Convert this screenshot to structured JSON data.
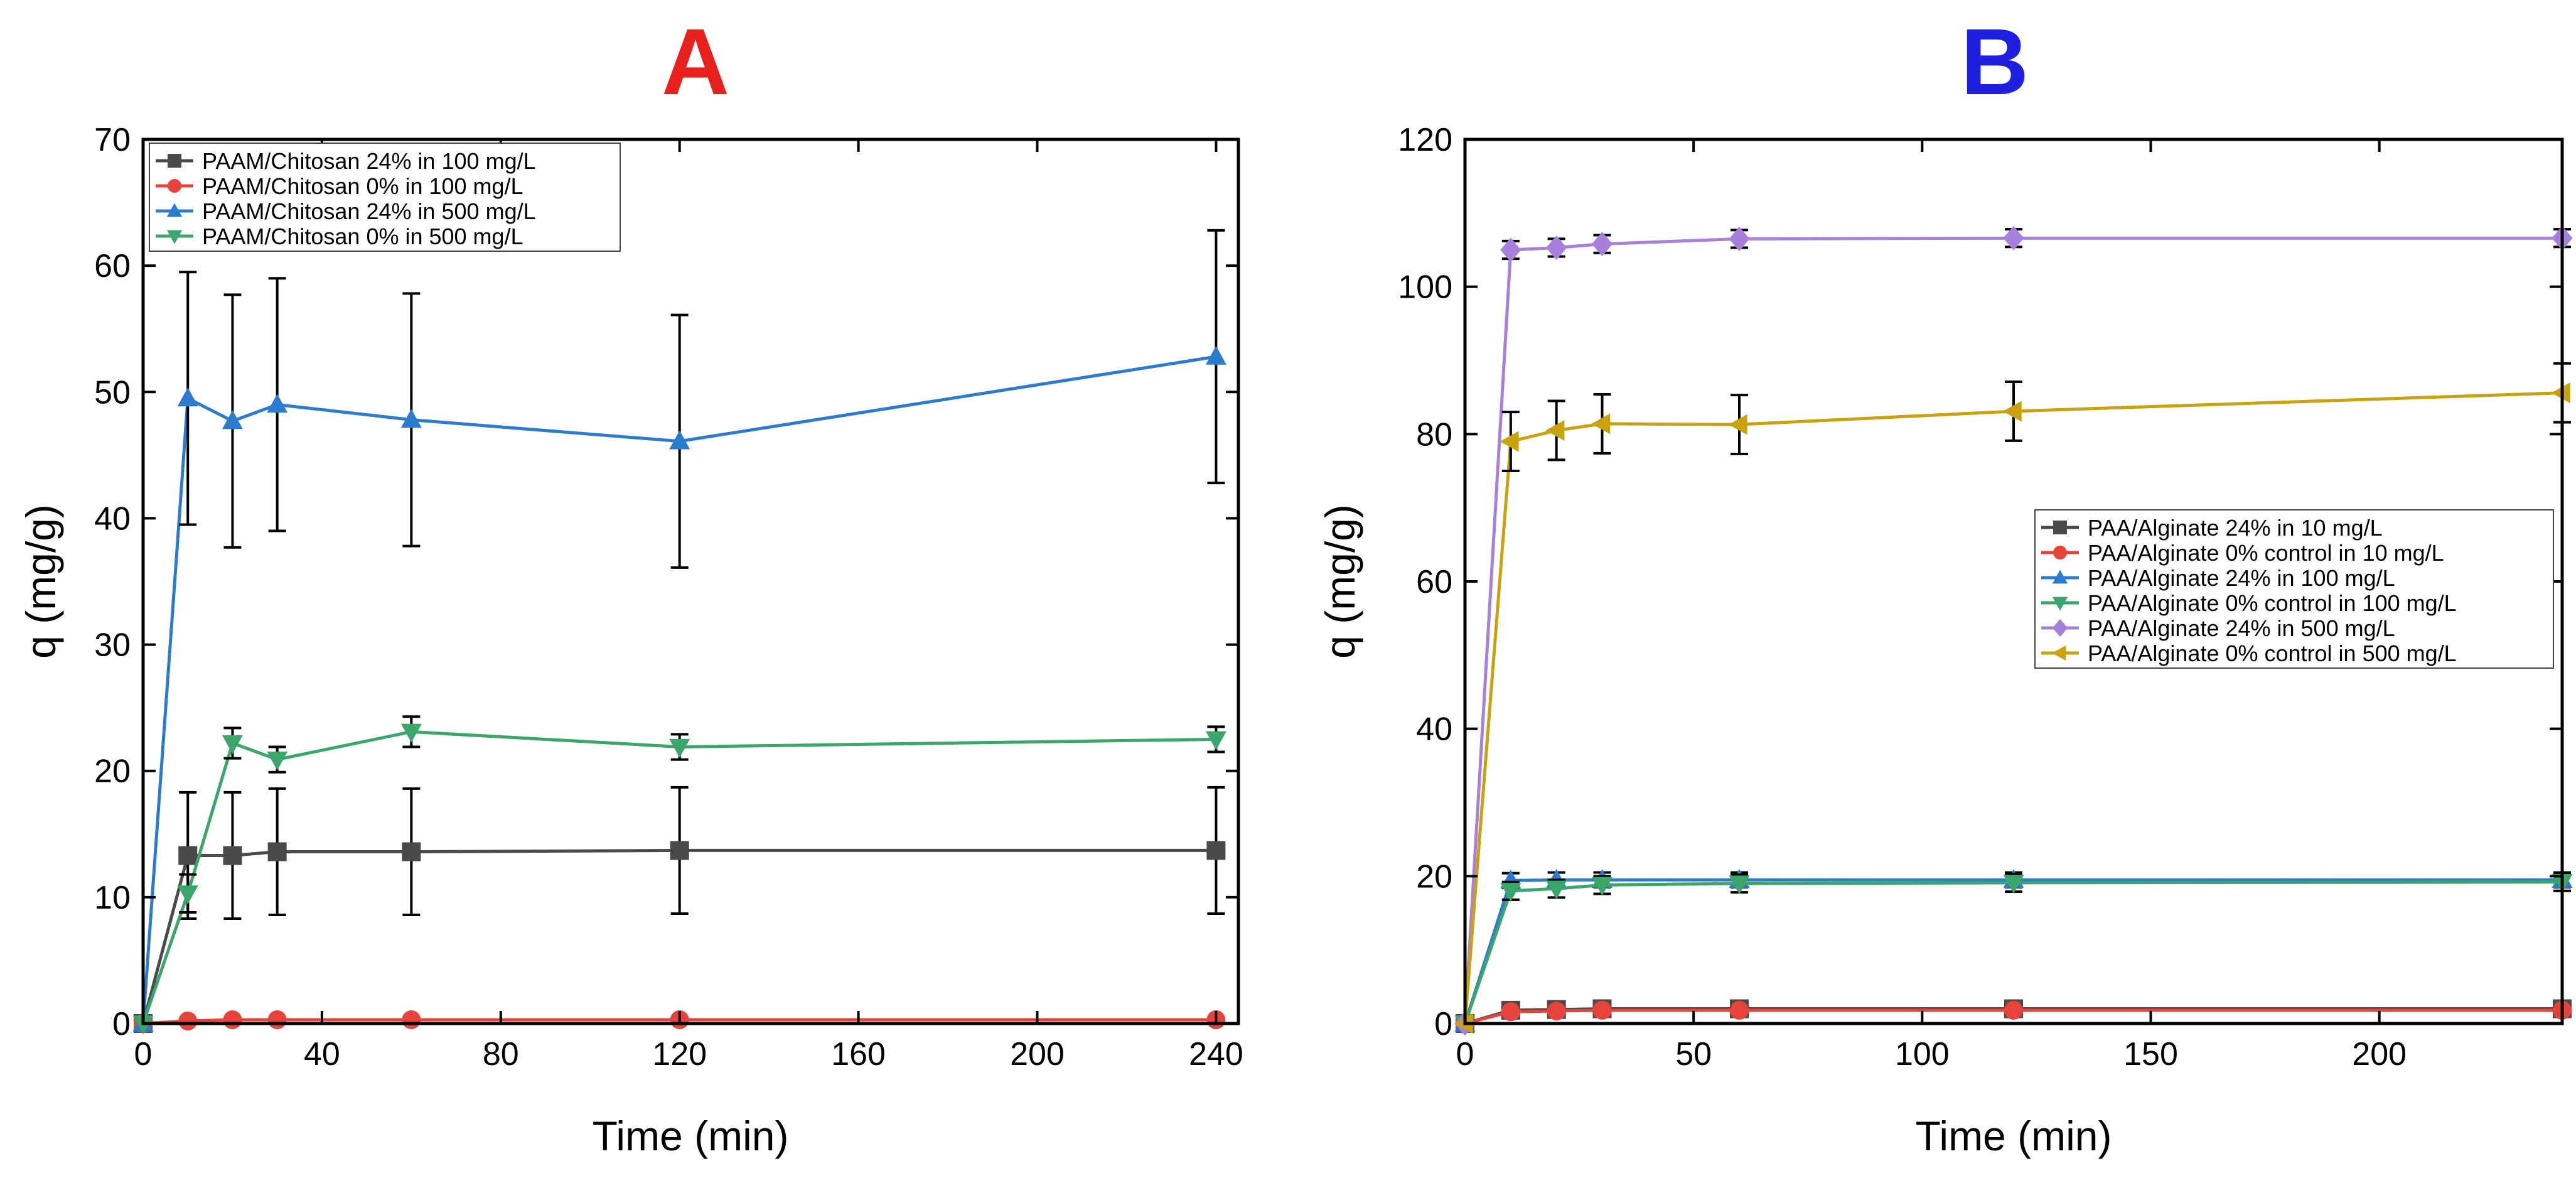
{
  "chart_data": [
    {
      "type": "line",
      "panel_label": "A",
      "panel_label_color": "#e8211c",
      "xlabel": "Time (min)",
      "ylabel": "q (mg/g)",
      "xlim": [
        0,
        245
      ],
      "ylim": [
        0,
        70
      ],
      "xticks": [
        0,
        40,
        80,
        120,
        160,
        200,
        240
      ],
      "yticks": [
        0,
        10,
        20,
        30,
        40,
        50,
        60,
        70
      ],
      "legend_position": "top-left",
      "series": [
        {
          "name": "PAAM/Chitosan 24% in 100 mg/L",
          "color": "#4a4a4a",
          "marker": "square",
          "x": [
            0,
            10,
            20,
            30,
            60,
            120,
            240
          ],
          "y": [
            0,
            13.3,
            13.3,
            13.6,
            13.6,
            13.7,
            13.7
          ],
          "err": [
            0,
            5,
            5,
            5,
            5,
            5,
            5
          ]
        },
        {
          "name": "PAAM/Chitosan 0% in 100 mg/L",
          "color": "#e8433a",
          "marker": "circle",
          "x": [
            0,
            10,
            20,
            30,
            60,
            120,
            240
          ],
          "y": [
            0,
            0.2,
            0.3,
            0.3,
            0.3,
            0.3,
            0.3
          ],
          "err": [
            0,
            0,
            0,
            0,
            0,
            0,
            0
          ]
        },
        {
          "name": "PAAM/Chitosan 24% in 500 mg/L",
          "color": "#2b7bd1",
          "marker": "triangle-up",
          "x": [
            0,
            10,
            20,
            30,
            60,
            120,
            240
          ],
          "y": [
            0,
            49.5,
            47.7,
            49,
            47.8,
            46.1,
            52.8
          ],
          "err": [
            0,
            10,
            10,
            10,
            10,
            10,
            10
          ]
        },
        {
          "name": "PAAM/Chitosan 0% in 500 mg/L",
          "color": "#3aa66a",
          "marker": "triangle-down",
          "x": [
            0,
            10,
            20,
            30,
            60,
            120,
            240
          ],
          "y": [
            0,
            10.3,
            22.2,
            20.9,
            23.1,
            21.9,
            22.5
          ],
          "err": [
            0,
            1.5,
            1.2,
            1,
            1.2,
            1,
            1
          ]
        }
      ]
    },
    {
      "type": "line",
      "panel_label": "B",
      "panel_label_color": "#1f1fe0",
      "xlabel": "Time (min)",
      "ylabel": "q (mg/g)",
      "xlim": [
        0,
        240
      ],
      "ylim": [
        0,
        120
      ],
      "xticks": [
        0,
        50,
        100,
        150,
        200
      ],
      "yticks": [
        0,
        20,
        40,
        60,
        80,
        100,
        120
      ],
      "legend_position": "center-right",
      "series": [
        {
          "name": "PAA/Alginate 24% in 10 mg/L",
          "color": "#4a4a4a",
          "marker": "square",
          "x": [
            0,
            10,
            20,
            30,
            60,
            120,
            240
          ],
          "y": [
            0,
            1.8,
            1.9,
            2,
            2,
            2,
            2
          ],
          "err": [
            0,
            0.4,
            0.4,
            0.4,
            0.4,
            0.4,
            0.4
          ]
        },
        {
          "name": "PAA/Alginate 0% control in 10 mg/L",
          "color": "#e8433a",
          "marker": "circle",
          "x": [
            0,
            10,
            20,
            30,
            60,
            120,
            240
          ],
          "y": [
            0,
            1.6,
            1.7,
            1.8,
            1.8,
            1.8,
            1.8
          ],
          "err": [
            0,
            0.4,
            0.4,
            0.4,
            0.4,
            0.4,
            0.4
          ]
        },
        {
          "name": "PAA/Alginate 24% in 100 mg/L",
          "color": "#2b7bd1",
          "marker": "triangle-up",
          "x": [
            0,
            10,
            20,
            30,
            60,
            120,
            240
          ],
          "y": [
            0,
            19.4,
            19.5,
            19.5,
            19.5,
            19.5,
            19.5
          ],
          "err": [
            0,
            1,
            1,
            1,
            1,
            1,
            1
          ]
        },
        {
          "name": "PAA/Alginate 0% control in 100 mg/L",
          "color": "#3aa66a",
          "marker": "triangle-down",
          "x": [
            0,
            10,
            20,
            30,
            60,
            120,
            240
          ],
          "y": [
            0,
            18,
            18.3,
            18.8,
            19,
            19.1,
            19.2
          ],
          "err": [
            0,
            1.2,
            1.2,
            1.2,
            1.2,
            1.2,
            1.2
          ]
        },
        {
          "name": "PAA/Alginate 24% in 500 mg/L",
          "color": "#a77fdc",
          "marker": "diamond",
          "x": [
            0,
            10,
            20,
            30,
            60,
            120,
            240
          ],
          "y": [
            0,
            105,
            105.3,
            105.8,
            106.5,
            106.6,
            106.6
          ],
          "err": [
            0,
            1.2,
            1.2,
            1.2,
            1.2,
            1.2,
            1.2
          ]
        },
        {
          "name": "PAA/Alginate 0% control in 500 mg/L",
          "color": "#c9a20e",
          "marker": "triangle-left",
          "x": [
            0,
            10,
            20,
            30,
            60,
            120,
            240
          ],
          "y": [
            0,
            79,
            80.5,
            81.4,
            81.3,
            83.1,
            85.6
          ],
          "err": [
            0,
            4,
            4,
            4,
            4,
            4,
            4
          ]
        }
      ]
    }
  ]
}
